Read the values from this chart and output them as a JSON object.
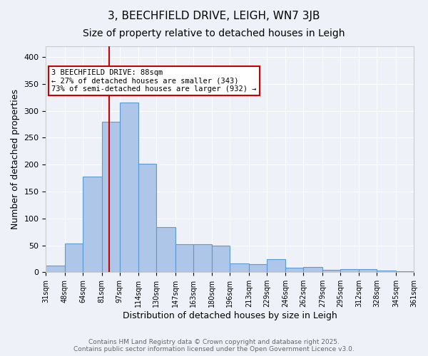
{
  "title1": "3, BEECHFIELD DRIVE, LEIGH, WN7 3JB",
  "title2": "Size of property relative to detached houses in Leigh",
  "xlabel": "Distribution of detached houses by size in Leigh",
  "ylabel": "Number of detached properties",
  "bin_edges": [
    31,
    48,
    64,
    81,
    97,
    114,
    130,
    147,
    163,
    180,
    196,
    213,
    229,
    246,
    262,
    279,
    295,
    312,
    328,
    345,
    361
  ],
  "bar_heights": [
    13,
    53,
    178,
    280,
    315,
    202,
    84,
    52,
    52,
    50,
    16,
    15,
    24,
    8,
    10,
    5,
    6,
    6,
    3,
    2
  ],
  "bar_color": "#aec6e8",
  "bar_edgecolor": "#5b9bd5",
  "property_size": 88,
  "red_line_color": "#cc0000",
  "annotation_text": "3 BEECHFIELD DRIVE: 88sqm\n← 27% of detached houses are smaller (343)\n73% of semi-detached houses are larger (932) →",
  "annotation_box_color": "#ffffff",
  "annotation_box_edgecolor": "#cc0000",
  "ylim": [
    0,
    420
  ],
  "yticks": [
    0,
    50,
    100,
    150,
    200,
    250,
    300,
    350,
    400
  ],
  "footer_text": "Contains HM Land Registry data © Crown copyright and database right 2025.\nContains public sector information licensed under the Open Government Licence v3.0.",
  "bg_color": "#eef2f8",
  "grid_color": "#ffffff",
  "title1_fontsize": 11,
  "title2_fontsize": 10
}
